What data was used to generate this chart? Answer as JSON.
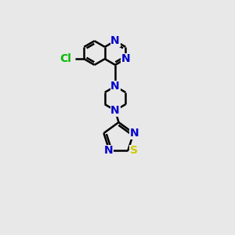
{
  "bg_color": "#e8e8e8",
  "bond_color": "#000000",
  "N_color": "#0000cc",
  "S_color": "#cccc00",
  "Cl_color": "#00bb00",
  "line_width": 1.8,
  "font_size": 10,
  "figsize": [
    3.0,
    3.0
  ],
  "dpi": 100,
  "xlim": [
    0,
    10
  ],
  "ylim": [
    0,
    10
  ]
}
